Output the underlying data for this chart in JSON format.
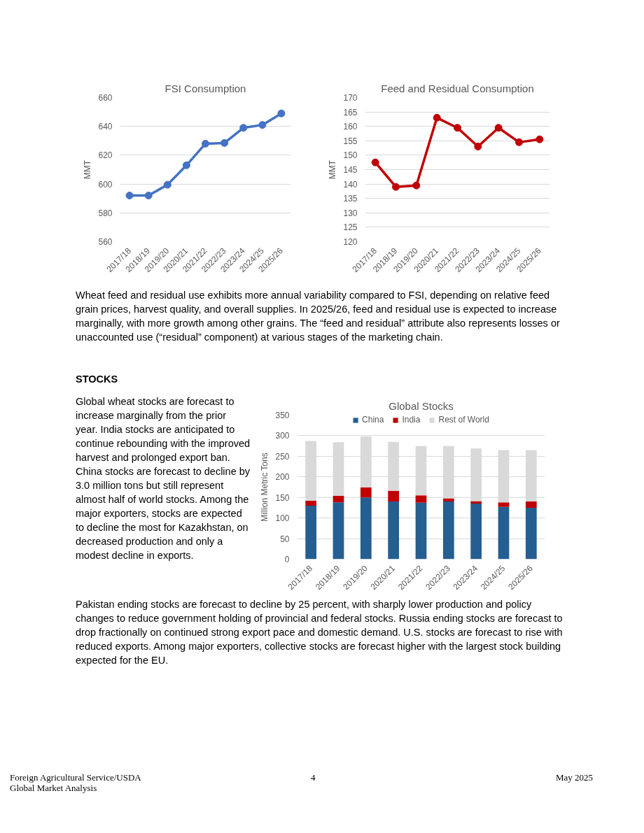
{
  "chart_data": [
    {
      "type": "line",
      "title": "FSI Consumption",
      "ylabel": "MMT",
      "categories": [
        "2017/18",
        "2018/19",
        "2019/20",
        "2020/21",
        "2021/22",
        "2022/23",
        "2023/24",
        "2024/25",
        "2025/26"
      ],
      "series": [
        {
          "color": "#4472c4",
          "values": [
            592,
            592,
            599.5,
            613,
            628,
            628.5,
            639,
            641,
            649
          ]
        }
      ],
      "ylim": [
        560,
        660
      ],
      "yticks": [
        560,
        580,
        600,
        620,
        640,
        660
      ],
      "grid": "y",
      "marker": "circle",
      "legend": false
    },
    {
      "type": "line",
      "title": "Feed and Residual Consumption",
      "ylabel": "MMT",
      "categories": [
        "2017/18",
        "2018/19",
        "2019/20",
        "2020/21",
        "2021/22",
        "2022/23",
        "2023/24",
        "2024/25",
        "2025/26"
      ],
      "series": [
        {
          "color": "#c00000",
          "values": [
            147.5,
            139,
            139.5,
            163,
            159.5,
            153,
            159.5,
            154.5,
            155.5
          ]
        }
      ],
      "ylim": [
        120,
        170
      ],
      "yticks": [
        120,
        125,
        130,
        135,
        140,
        145,
        150,
        155,
        160,
        165,
        170
      ],
      "grid": "y",
      "marker": "circle",
      "legend": false,
      "annotations": [
        "Wheat feed and residual use exhibits more annual variability compared to FSI, depending on relative feed grain prices, harvest quality, and overall supplies. In 2025/26, feed and residual use is expected to increase marginally, with more growth among other grains. The “feed and residual” attribute also represents losses or unaccounted use (“residual” component) at various stages of the marketing chain."
      ]
    },
    {
      "type": "bar",
      "stacked": true,
      "title": "Global Stocks",
      "ylabel": "Million Metric Tons",
      "categories": [
        "2017/18",
        "2018/19",
        "2019/20",
        "2020/21",
        "2021/22",
        "2022/23",
        "2023/24",
        "2024/25",
        "2025/26"
      ],
      "series": [
        {
          "name": "China",
          "color": "#255e91",
          "values": [
            130,
            138,
            150,
            140,
            137,
            140,
            135,
            127,
            125
          ]
        },
        {
          "name": "India",
          "color": "#c00000",
          "values": [
            12,
            16,
            24,
            26,
            18,
            8,
            6,
            11,
            15
          ]
        },
        {
          "name": "Rest of World",
          "color": "#d9d9d9",
          "values": [
            145,
            130,
            124,
            119,
            120,
            127,
            128,
            127,
            125
          ]
        }
      ],
      "ylim": [
        0,
        350
      ],
      "yticks": [
        0,
        50,
        100,
        150,
        200,
        250,
        300,
        350
      ],
      "grid": "y",
      "legend": "top",
      "annotations": [
        "STOCKS",
        "Global wheat stocks are forecast to increase marginally from the prior year. India stocks are anticipated to continue rebounding with the improved harvest and prolonged export ban. China stocks are forecast to decline by 3.0 million tons but still represent almost half of world stocks. Among the major exporters, stocks are expected to decline the most for Kazakhstan, on decreased production and only a modest decline in exports.",
        "Pakistan ending stocks are forecast to decline by 25 percent, with sharply lower production and policy changes to reduce government holding of provincial and federal stocks. Russia ending stocks are forecast to drop fractionally on continued strong export pace and domestic demand. U.S. stocks are forecast to rise with reduced exports. Among major exporters, collective stocks are forecast higher with the largest stock building expected for the EU.",
        "Foreign Agricultural Service/USDA",
        "Global Market Analysis",
        "4",
        "May 2025"
      ]
    }
  ]
}
